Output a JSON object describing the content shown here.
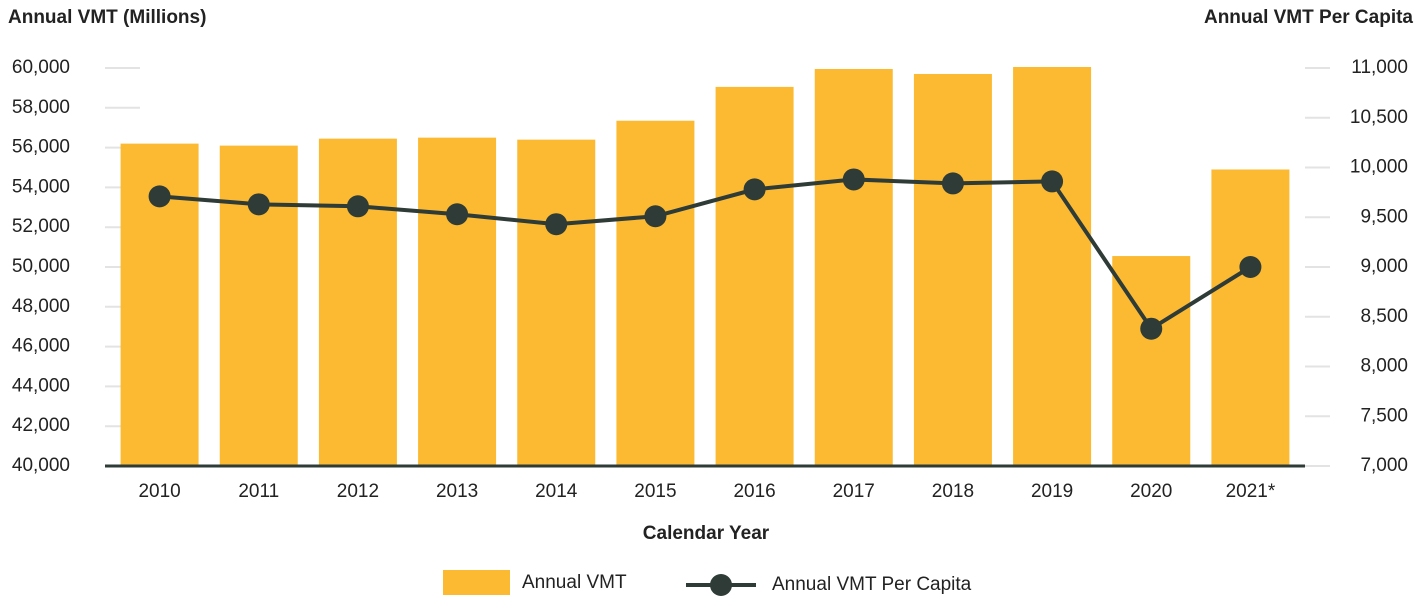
{
  "chart_data": {
    "type": "combo",
    "y_label": "Annual VMT (Millions)",
    "y2_label": "Annual VMT Per Capita",
    "x_label": "Calendar Year",
    "categories": [
      "2010",
      "2011",
      "2012",
      "2013",
      "2014",
      "2015",
      "2016",
      "2017",
      "2018",
      "2019",
      "2020",
      "2021*"
    ],
    "series": [
      {
        "name": "Annual VMT",
        "type": "bar",
        "color": "#fbba32",
        "values": [
          56200,
          56100,
          56450,
          56500,
          56400,
          57350,
          59050,
          59950,
          59700,
          60050,
          50550,
          54900
        ]
      },
      {
        "name": "Annual VMT Per Capita",
        "type": "line",
        "axis": "y2",
        "color": "#2f3b37",
        "values": [
          9710,
          9630,
          9610,
          9530,
          9430,
          9510,
          9780,
          9880,
          9840,
          9860,
          8380,
          9000
        ]
      }
    ],
    "ylim": [
      40000,
      60000
    ],
    "yticks": [
      {
        "value": 40000,
        "label": "40,000"
      },
      {
        "value": 42000,
        "label": "42,000"
      },
      {
        "value": 44000,
        "label": "44,000"
      },
      {
        "value": 46000,
        "label": "46,000"
      },
      {
        "value": 48000,
        "label": "48,000"
      },
      {
        "value": 50000,
        "label": "50,000"
      },
      {
        "value": 52000,
        "label": "52,000"
      },
      {
        "value": 54000,
        "label": "54,000"
      },
      {
        "value": 56000,
        "label": "56,000"
      },
      {
        "value": 58000,
        "label": "58,000"
      },
      {
        "value": 60000,
        "label": "60,000"
      }
    ],
    "y2lim": [
      7000,
      11000
    ],
    "y2ticks": [
      {
        "value": 7000,
        "label": "7,000"
      },
      {
        "value": 7500,
        "label": "7,500"
      },
      {
        "value": 8000,
        "label": "8,000"
      },
      {
        "value": 8500,
        "label": "8,500"
      },
      {
        "value": 9000,
        "label": "9,000"
      },
      {
        "value": 9500,
        "label": "9,500"
      },
      {
        "value": 10000,
        "label": "10,000"
      },
      {
        "value": 10500,
        "label": "10,500"
      },
      {
        "value": 11000,
        "label": "11,000"
      }
    ]
  }
}
